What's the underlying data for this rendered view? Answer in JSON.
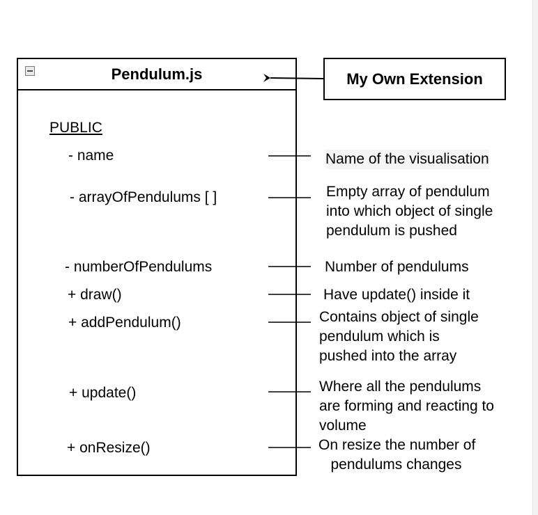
{
  "class": {
    "title": "Pendulum.js",
    "section": "PUBLIC",
    "members": [
      "- name",
      "- arrayOfPendulums  [ ]",
      "- numberOfPendulums",
      "+  draw()",
      "+  addPendulum()",
      "+ update()",
      "+ onResize()"
    ]
  },
  "extension": {
    "label": "My Own Extension"
  },
  "descriptions": [
    "Name of the visualisation",
    "Empty array of pendulum\ninto which object of single\npendulum is pushed",
    "Number of pendulums",
    "Have update() inside it",
    "Contains object of single\npendulum which is\npushed into the array",
    "Where all the pendulums\nare forming and reacting to\nvolume",
    "On resize the number of\n   pendulums changes"
  ]
}
